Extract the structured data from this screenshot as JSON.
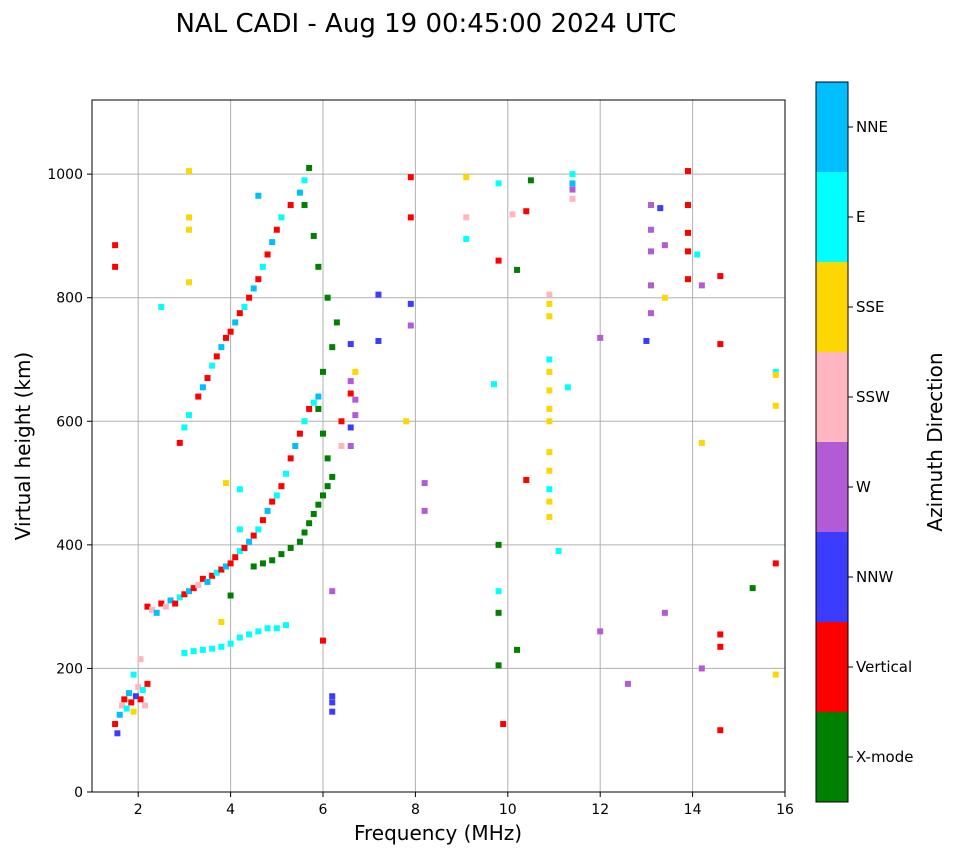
{
  "chart_data": {
    "type": "scatter",
    "title": "NAL CADI - Aug 19 00:45:00 2024 UTC",
    "xlabel": "Frequency (MHz)",
    "ylabel": "Virtual height (km)",
    "xlim": [
      1,
      16
    ],
    "ylim": [
      0,
      1120
    ],
    "xticks": [
      2,
      4,
      6,
      8,
      10,
      12,
      14,
      16
    ],
    "yticks": [
      0,
      200,
      400,
      600,
      800,
      1000
    ],
    "grid": true,
    "colorbar": {
      "label": "Azimuth Direction",
      "categories": [
        {
          "name": "X-mode",
          "color": "#008000"
        },
        {
          "name": "Vertical",
          "color": "#ff0000"
        },
        {
          "name": "NNW",
          "color": "#3c3cff"
        },
        {
          "name": "W",
          "color": "#b35ad6"
        },
        {
          "name": "SSW",
          "color": "#ffb6c1"
        },
        {
          "name": "SSE",
          "color": "#ffd700"
        },
        {
          "name": "E",
          "color": "#00ffff"
        },
        {
          "name": "NNE",
          "color": "#00bfff"
        }
      ]
    },
    "points": [
      [
        1.5,
        110,
        "Vertical"
      ],
      [
        1.55,
        95,
        "NNW"
      ],
      [
        1.6,
        125,
        "NNE"
      ],
      [
        1.65,
        140,
        "SSW"
      ],
      [
        1.7,
        150,
        "Vertical"
      ],
      [
        1.75,
        135,
        "E"
      ],
      [
        1.8,
        160,
        "NNE"
      ],
      [
        1.85,
        145,
        "Vertical"
      ],
      [
        1.9,
        130,
        "SSE"
      ],
      [
        1.95,
        155,
        "NNW"
      ],
      [
        2.0,
        170,
        "SSW"
      ],
      [
        2.05,
        150,
        "Vertical"
      ],
      [
        2.1,
        165,
        "E"
      ],
      [
        2.15,
        140,
        "SSW"
      ],
      [
        2.2,
        175,
        "Vertical"
      ],
      [
        1.9,
        190,
        "E"
      ],
      [
        2.05,
        215,
        "SSW"
      ],
      [
        1.5,
        885,
        "Vertical"
      ],
      [
        1.5,
        850,
        "Vertical"
      ],
      [
        2.2,
        300,
        "Vertical"
      ],
      [
        2.3,
        295,
        "SSW"
      ],
      [
        2.4,
        290,
        "NNE"
      ],
      [
        2.5,
        305,
        "Vertical"
      ],
      [
        2.6,
        300,
        "SSW"
      ],
      [
        2.7,
        310,
        "NNE"
      ],
      [
        2.8,
        305,
        "Vertical"
      ],
      [
        2.9,
        315,
        "E"
      ],
      [
        3.0,
        320,
        "Vertical"
      ],
      [
        3.1,
        325,
        "NNE"
      ],
      [
        3.2,
        330,
        "Vertical"
      ],
      [
        3.3,
        335,
        "SSW"
      ],
      [
        3.4,
        345,
        "Vertical"
      ],
      [
        3.5,
        340,
        "NNE"
      ],
      [
        3.6,
        350,
        "Vertical"
      ],
      [
        3.7,
        355,
        "E"
      ],
      [
        3.8,
        360,
        "Vertical"
      ],
      [
        3.9,
        365,
        "NNE"
      ],
      [
        4.0,
        370,
        "Vertical"
      ],
      [
        4.1,
        380,
        "Vertical"
      ],
      [
        4.2,
        390,
        "E"
      ],
      [
        4.3,
        395,
        "Vertical"
      ],
      [
        4.4,
        405,
        "NNE"
      ],
      [
        4.5,
        415,
        "Vertical"
      ],
      [
        4.6,
        425,
        "E"
      ],
      [
        4.7,
        440,
        "Vertical"
      ],
      [
        4.8,
        455,
        "NNE"
      ],
      [
        4.9,
        470,
        "Vertical"
      ],
      [
        5.0,
        480,
        "E"
      ],
      [
        5.1,
        495,
        "Vertical"
      ],
      [
        5.2,
        515,
        "E"
      ],
      [
        5.3,
        540,
        "Vertical"
      ],
      [
        5.4,
        560,
        "NNE"
      ],
      [
        5.5,
        580,
        "Vertical"
      ],
      [
        5.6,
        600,
        "E"
      ],
      [
        5.7,
        620,
        "Vertical"
      ],
      [
        5.8,
        630,
        "E"
      ],
      [
        5.9,
        640,
        "NNE"
      ],
      [
        3.3,
        640,
        "Vertical"
      ],
      [
        3.4,
        655,
        "NNE"
      ],
      [
        3.5,
        670,
        "Vertical"
      ],
      [
        3.6,
        690,
        "E"
      ],
      [
        3.7,
        705,
        "Vertical"
      ],
      [
        3.8,
        720,
        "NNE"
      ],
      [
        3.9,
        735,
        "Vertical"
      ],
      [
        4.0,
        745,
        "Vertical"
      ],
      [
        4.1,
        760,
        "NNE"
      ],
      [
        4.2,
        775,
        "Vertical"
      ],
      [
        4.3,
        785,
        "E"
      ],
      [
        4.4,
        800,
        "Vertical"
      ],
      [
        4.5,
        815,
        "NNE"
      ],
      [
        4.6,
        830,
        "Vertical"
      ],
      [
        4.7,
        850,
        "E"
      ],
      [
        4.8,
        870,
        "Vertical"
      ],
      [
        4.9,
        890,
        "NNE"
      ],
      [
        5.0,
        910,
        "Vertical"
      ],
      [
        5.1,
        930,
        "E"
      ],
      [
        5.3,
        950,
        "Vertical"
      ],
      [
        5.5,
        970,
        "NNE"
      ],
      [
        5.6,
        990,
        "E"
      ],
      [
        3.1,
        610,
        "E"
      ],
      [
        3.0,
        590,
        "E"
      ],
      [
        2.9,
        565,
        "Vertical"
      ],
      [
        4.6,
        965,
        "NNE"
      ],
      [
        4.5,
        365,
        "X-mode"
      ],
      [
        4.7,
        370,
        "X-mode"
      ],
      [
        4.9,
        375,
        "X-mode"
      ],
      [
        5.1,
        385,
        "X-mode"
      ],
      [
        5.3,
        395,
        "X-mode"
      ],
      [
        5.5,
        405,
        "X-mode"
      ],
      [
        5.6,
        420,
        "X-mode"
      ],
      [
        5.7,
        435,
        "X-mode"
      ],
      [
        5.8,
        450,
        "X-mode"
      ],
      [
        5.9,
        465,
        "X-mode"
      ],
      [
        6.0,
        480,
        "X-mode"
      ],
      [
        6.1,
        495,
        "X-mode"
      ],
      [
        6.2,
        510,
        "X-mode"
      ],
      [
        6.1,
        540,
        "X-mode"
      ],
      [
        6.0,
        580,
        "X-mode"
      ],
      [
        5.9,
        620,
        "X-mode"
      ],
      [
        6.0,
        680,
        "X-mode"
      ],
      [
        6.2,
        720,
        "X-mode"
      ],
      [
        6.3,
        760,
        "X-mode"
      ],
      [
        6.1,
        800,
        "X-mode"
      ],
      [
        5.9,
        850,
        "X-mode"
      ],
      [
        5.8,
        900,
        "X-mode"
      ],
      [
        5.6,
        950,
        "X-mode"
      ],
      [
        5.7,
        1010,
        "X-mode"
      ],
      [
        3.0,
        225,
        "E"
      ],
      [
        3.2,
        228,
        "E"
      ],
      [
        3.4,
        230,
        "E"
      ],
      [
        3.6,
        232,
        "E"
      ],
      [
        3.8,
        235,
        "E"
      ],
      [
        4.0,
        240,
        "E"
      ],
      [
        4.2,
        250,
        "E"
      ],
      [
        4.4,
        255,
        "E"
      ],
      [
        4.6,
        260,
        "E"
      ],
      [
        4.8,
        265,
        "E"
      ],
      [
        5.0,
        265,
        "E"
      ],
      [
        5.2,
        270,
        "E"
      ],
      [
        3.8,
        275,
        "SSE"
      ],
      [
        4.0,
        318,
        "X-mode"
      ],
      [
        3.1,
        1005,
        "SSE"
      ],
      [
        3.1,
        930,
        "SSE"
      ],
      [
        3.1,
        910,
        "SSE"
      ],
      [
        3.1,
        825,
        "SSE"
      ],
      [
        3.9,
        500,
        "SSE"
      ],
      [
        2.5,
        785,
        "E"
      ],
      [
        4.2,
        490,
        "E"
      ],
      [
        4.2,
        425,
        "E"
      ],
      [
        6.2,
        155,
        "NNW"
      ],
      [
        6.2,
        145,
        "NNW"
      ],
      [
        6.2,
        130,
        "NNW"
      ],
      [
        6.2,
        325,
        "W"
      ],
      [
        6.0,
        245,
        "Vertical"
      ],
      [
        6.4,
        560,
        "SSW"
      ],
      [
        6.6,
        560,
        "W"
      ],
      [
        6.6,
        590,
        "NNW"
      ],
      [
        6.7,
        610,
        "W"
      ],
      [
        6.7,
        635,
        "W"
      ],
      [
        6.6,
        665,
        "W"
      ],
      [
        6.7,
        680,
        "SSE"
      ],
      [
        6.6,
        725,
        "NNW"
      ],
      [
        6.6,
        645,
        "Vertical"
      ],
      [
        6.4,
        600,
        "Vertical"
      ],
      [
        7.2,
        730,
        "NNW"
      ],
      [
        7.2,
        805,
        "NNW"
      ],
      [
        7.8,
        600,
        "SSE"
      ],
      [
        7.9,
        755,
        "W"
      ],
      [
        7.9,
        790,
        "NNW"
      ],
      [
        7.9,
        930,
        "Vertical"
      ],
      [
        7.9,
        995,
        "Vertical"
      ],
      [
        8.2,
        500,
        "W"
      ],
      [
        8.2,
        455,
        "W"
      ],
      [
        9.1,
        995,
        "SSE"
      ],
      [
        9.1,
        930,
        "SSW"
      ],
      [
        9.1,
        895,
        "E"
      ],
      [
        9.7,
        660,
        "E"
      ],
      [
        9.8,
        985,
        "E"
      ],
      [
        9.8,
        860,
        "Vertical"
      ],
      [
        9.8,
        400,
        "X-mode"
      ],
      [
        9.8,
        325,
        "E"
      ],
      [
        9.8,
        290,
        "X-mode"
      ],
      [
        9.8,
        205,
        "X-mode"
      ],
      [
        9.9,
        110,
        "Vertical"
      ],
      [
        10.1,
        935,
        "SSW"
      ],
      [
        10.2,
        845,
        "X-mode"
      ],
      [
        10.2,
        230,
        "X-mode"
      ],
      [
        10.4,
        940,
        "Vertical"
      ],
      [
        10.4,
        505,
        "Vertical"
      ],
      [
        10.5,
        990,
        "X-mode"
      ],
      [
        10.9,
        805,
        "SSW"
      ],
      [
        10.9,
        790,
        "SSE"
      ],
      [
        10.9,
        770,
        "SSE"
      ],
      [
        10.9,
        700,
        "E"
      ],
      [
        10.9,
        680,
        "SSE"
      ],
      [
        10.9,
        650,
        "SSE"
      ],
      [
        10.9,
        620,
        "SSE"
      ],
      [
        10.9,
        600,
        "SSE"
      ],
      [
        10.9,
        550,
        "SSE"
      ],
      [
        10.9,
        520,
        "SSE"
      ],
      [
        10.9,
        490,
        "E"
      ],
      [
        10.9,
        470,
        "SSE"
      ],
      [
        10.9,
        445,
        "SSE"
      ],
      [
        11.1,
        390,
        "E"
      ],
      [
        11.3,
        655,
        "E"
      ],
      [
        11.4,
        1000,
        "E"
      ],
      [
        11.4,
        985,
        "NNE"
      ],
      [
        11.4,
        975,
        "W"
      ],
      [
        11.4,
        960,
        "SSW"
      ],
      [
        12.0,
        735,
        "W"
      ],
      [
        12.0,
        260,
        "W"
      ],
      [
        12.6,
        175,
        "W"
      ],
      [
        13.1,
        950,
        "W"
      ],
      [
        13.1,
        910,
        "W"
      ],
      [
        13.1,
        875,
        "W"
      ],
      [
        13.1,
        820,
        "W"
      ],
      [
        13.1,
        775,
        "W"
      ],
      [
        13.0,
        730,
        "NNW"
      ],
      [
        13.3,
        945,
        "NNW"
      ],
      [
        13.4,
        885,
        "W"
      ],
      [
        13.4,
        800,
        "SSE"
      ],
      [
        13.4,
        290,
        "W"
      ],
      [
        13.9,
        1005,
        "Vertical"
      ],
      [
        13.9,
        950,
        "Vertical"
      ],
      [
        13.9,
        905,
        "Vertical"
      ],
      [
        13.9,
        875,
        "Vertical"
      ],
      [
        13.9,
        830,
        "Vertical"
      ],
      [
        14.1,
        870,
        "E"
      ],
      [
        14.2,
        820,
        "W"
      ],
      [
        14.2,
        565,
        "SSE"
      ],
      [
        14.2,
        200,
        "W"
      ],
      [
        14.6,
        835,
        "Vertical"
      ],
      [
        14.6,
        725,
        "Vertical"
      ],
      [
        14.6,
        255,
        "Vertical"
      ],
      [
        14.6,
        235,
        "Vertical"
      ],
      [
        14.6,
        100,
        "Vertical"
      ],
      [
        15.3,
        330,
        "X-mode"
      ],
      [
        15.8,
        680,
        "E"
      ],
      [
        15.8,
        675,
        "SSE"
      ],
      [
        15.8,
        625,
        "SSE"
      ],
      [
        15.8,
        370,
        "Vertical"
      ],
      [
        15.8,
        190,
        "SSE"
      ]
    ]
  }
}
